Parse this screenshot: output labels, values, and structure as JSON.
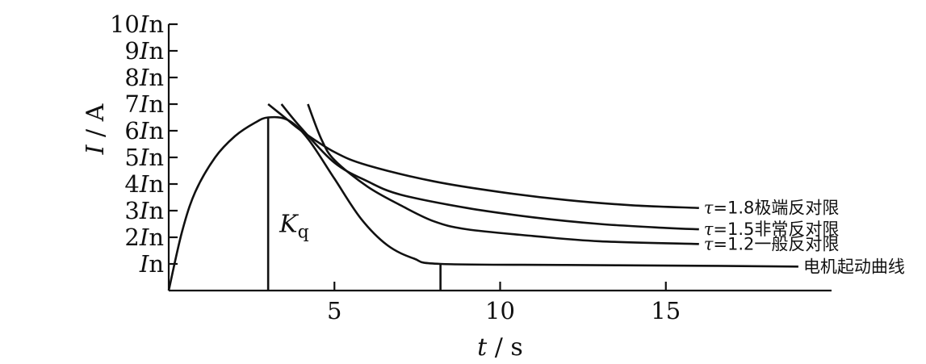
{
  "chart_data": {
    "type": "line",
    "xlabel_italic": "t",
    "xlabel_unit": " / s",
    "ylabel_italic": "I",
    "ylabel_unit": " / A",
    "xlim": [
      0,
      20
    ],
    "ylim": [
      0,
      10
    ],
    "x_ticks": [
      {
        "value": 5,
        "label": "5"
      },
      {
        "value": 10,
        "label": "10"
      },
      {
        "value": 15,
        "label": "15"
      }
    ],
    "y_ticks": [
      {
        "value": 1,
        "coef": "",
        "unit": "In"
      },
      {
        "value": 2,
        "coef": "2",
        "unit": "In"
      },
      {
        "value": 3,
        "coef": "3",
        "unit": "In"
      },
      {
        "value": 4,
        "coef": "4",
        "unit": "In"
      },
      {
        "value": 5,
        "coef": "5",
        "unit": "In"
      },
      {
        "value": 6,
        "coef": "6",
        "unit": "In"
      },
      {
        "value": 7,
        "coef": "7",
        "unit": "In"
      },
      {
        "value": 8,
        "coef": "8",
        "unit": "In"
      },
      {
        "value": 9,
        "coef": "9",
        "unit": "In"
      },
      {
        "value": 10,
        "coef": "10",
        "unit": "In"
      }
    ],
    "series": [
      {
        "name": "τ=1.8极端反对限",
        "values": [
          [
            3.0,
            7.0
          ],
          [
            3.5,
            6.5
          ],
          [
            4.0,
            6.0
          ],
          [
            5.0,
            5.2
          ],
          [
            6.0,
            4.7
          ],
          [
            8.0,
            4.1
          ],
          [
            10.0,
            3.7
          ],
          [
            12.0,
            3.4
          ],
          [
            14.0,
            3.2
          ],
          [
            16.0,
            3.1
          ]
        ]
      },
      {
        "name": "τ=1.5非常反对限",
        "values": [
          [
            3.4,
            7.0
          ],
          [
            4.0,
            6.1
          ],
          [
            5.0,
            4.8
          ],
          [
            6.0,
            4.1
          ],
          [
            7.0,
            3.6
          ],
          [
            9.0,
            3.1
          ],
          [
            11.0,
            2.75
          ],
          [
            13.0,
            2.5
          ],
          [
            15.0,
            2.35
          ],
          [
            16.0,
            2.3
          ]
        ]
      },
      {
        "name": "τ=1.2一般反对限",
        "values": [
          [
            4.2,
            7.0
          ],
          [
            4.6,
            5.7
          ],
          [
            5.0,
            4.9
          ],
          [
            6.0,
            3.9
          ],
          [
            7.0,
            3.2
          ],
          [
            8.0,
            2.6
          ],
          [
            9.0,
            2.3
          ],
          [
            11.0,
            2.05
          ],
          [
            13.0,
            1.85
          ],
          [
            16.0,
            1.75
          ]
        ]
      },
      {
        "name": "电机起动曲线",
        "values": [
          [
            0.0,
            0.0
          ],
          [
            0.4,
            2.2
          ],
          [
            0.8,
            3.7
          ],
          [
            1.4,
            5.0
          ],
          [
            2.0,
            5.8
          ],
          [
            2.6,
            6.3
          ],
          [
            3.0,
            6.5
          ],
          [
            3.6,
            6.4
          ],
          [
            4.2,
            5.7
          ],
          [
            5.0,
            4.2
          ],
          [
            5.8,
            2.7
          ],
          [
            6.6,
            1.7
          ],
          [
            7.4,
            1.2
          ],
          [
            8.2,
            1.0
          ],
          [
            12.0,
            0.96
          ],
          [
            16.0,
            0.93
          ],
          [
            19.0,
            0.9
          ]
        ]
      }
    ],
    "vlines": [
      {
        "x": 3.0,
        "y_top": 6.5
      },
      {
        "x": 8.2,
        "y_top": 1.0
      }
    ],
    "annotation": {
      "main": "K",
      "sub": "q",
      "x": 3.0,
      "y": 2.5
    }
  }
}
